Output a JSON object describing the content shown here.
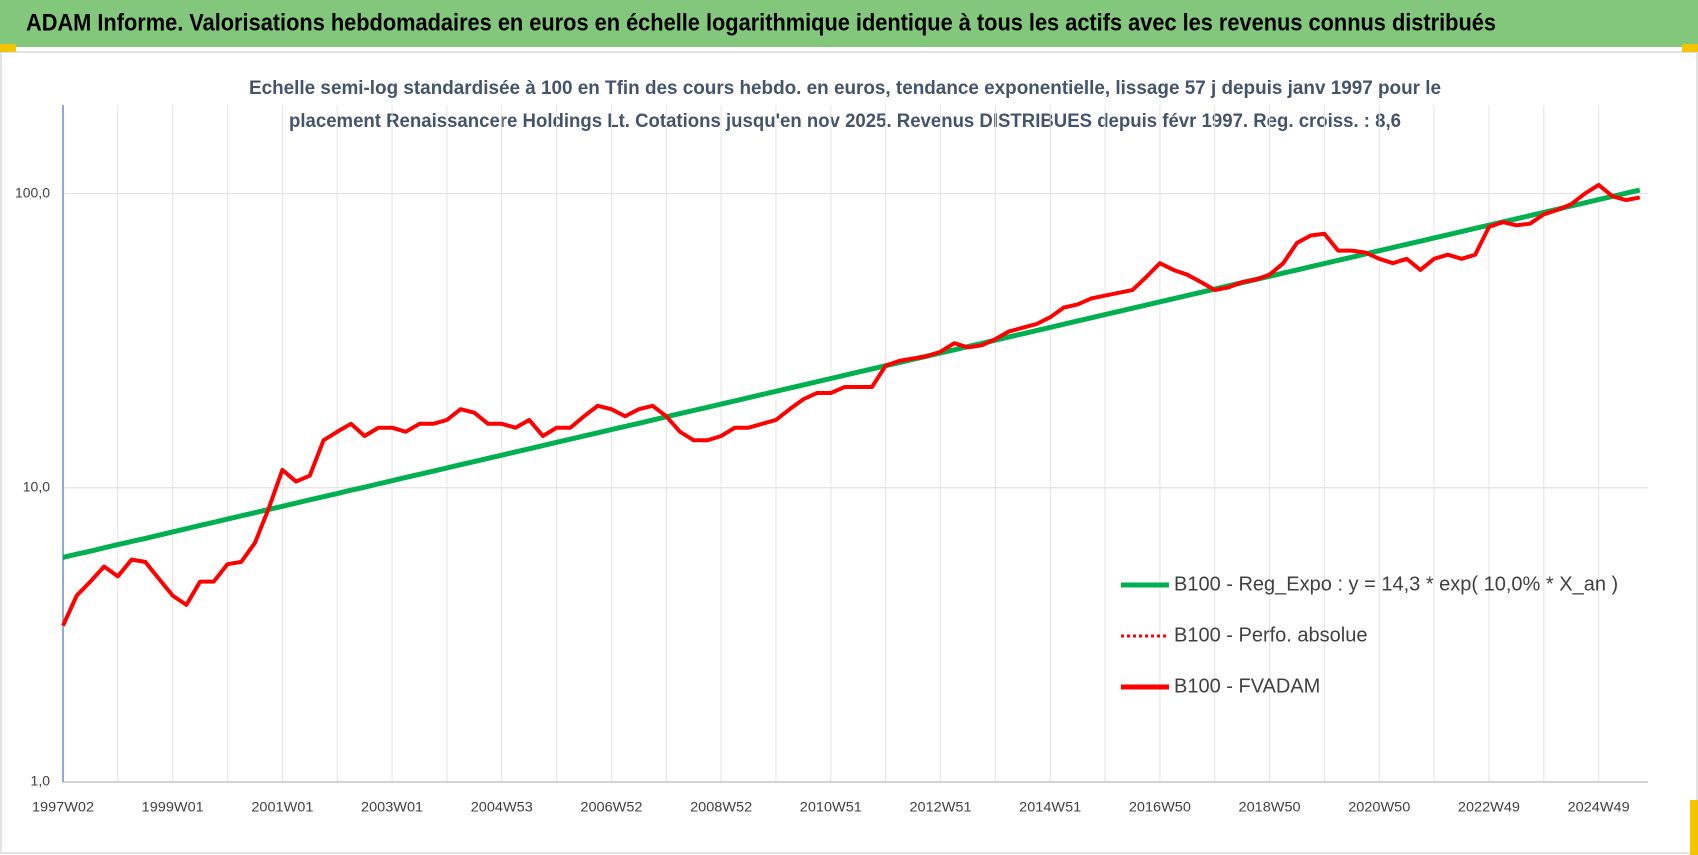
{
  "header": {
    "title": "ADAM Informe. Valorisations hebdomadaires en euros en échelle logarithmique identique à tous les actifs avec les revenus connus distribués"
  },
  "chart_data": {
    "type": "line",
    "title": [
      "Echelle semi-log standardisée à 100 en Tfin des cours hebdo. en euros, tendance exponentielle, lissage 57 j depuis janv 1997 pour le",
      "placement Renaissancere Holdings Lt. Cotations jusqu'en nov 2025. Revenus DISTRIBUES depuis févr 1997. Reg. croiss. : 8,6"
    ],
    "log_scale": true,
    "ylim": [
      1,
      200
    ],
    "yticks": [
      {
        "value": 1,
        "label": "1,0"
      },
      {
        "value": 10,
        "label": "10,0"
      },
      {
        "value": 100,
        "label": "100,0"
      }
    ],
    "grid": true,
    "legend": "lower right",
    "categories": [
      "1997W02",
      null,
      null,
      null,
      null,
      null,
      null,
      null,
      "1999W01",
      null,
      null,
      null,
      null,
      null,
      null,
      null,
      "2001W01",
      null,
      null,
      null,
      null,
      null,
      null,
      null,
      "2003W01",
      null,
      null,
      null,
      null,
      null,
      null,
      null,
      "2004W53",
      null,
      null,
      null,
      null,
      null,
      null,
      null,
      "2006W52",
      null,
      null,
      null,
      null,
      null,
      null,
      null,
      "2008W52",
      null,
      null,
      null,
      null,
      null,
      null,
      null,
      "2010W51",
      null,
      null,
      null,
      null,
      null,
      null,
      null,
      "2012W51",
      null,
      null,
      null,
      null,
      null,
      null,
      null,
      "2014W51",
      null,
      null,
      null,
      null,
      null,
      null,
      null,
      "2016W50",
      null,
      null,
      null,
      null,
      null,
      null,
      null,
      "2018W50",
      null,
      null,
      null,
      null,
      null,
      null,
      null,
      "2020W50",
      null,
      null,
      null,
      null,
      null,
      null,
      null,
      "2022W49",
      null,
      null,
      null,
      null,
      null,
      null,
      null,
      "2024W49",
      null,
      null,
      null
    ],
    "series": [
      {
        "name": "B100 - Reg_Expo : y = 14,3 * exp( 10,0% *  X_an )",
        "color": "#00b050",
        "style": "solid",
        "values": [
          5.8,
          5.95,
          6.09,
          6.25,
          6.41,
          6.57,
          6.73,
          6.9,
          7.08,
          7.26,
          7.45,
          7.63,
          7.83,
          8.03,
          8.23,
          8.44,
          8.65,
          8.87,
          9.1,
          9.33,
          9.56,
          9.81,
          10.05,
          10.31,
          10.57,
          10.84,
          11.11,
          11.39,
          11.68,
          11.98,
          12.28,
          12.59,
          12.91,
          13.24,
          13.57,
          13.91,
          14.27,
          14.63,
          15,
          15.38,
          15.77,
          16.16,
          16.57,
          16.99,
          17.42,
          17.87,
          18.32,
          18.78,
          19.26,
          19.74,
          20.24,
          20.76,
          21.28,
          21.82,
          22.37,
          22.94,
          23.52,
          24.12,
          24.73,
          25.35,
          25.99,
          26.65,
          27.33,
          28.02,
          28.73,
          29.45,
          30.2,
          30.96,
          31.75,
          32.55,
          33.38,
          34.22,
          35.09,
          35.98,
          36.89,
          37.82,
          38.78,
          39.76,
          40.77,
          41.8,
          42.86,
          43.94,
          45.05,
          46.19,
          47.36,
          48.56,
          49.79,
          51.05,
          52.35,
          53.67,
          55.03,
          56.42,
          57.85,
          59.31,
          60.81,
          62.35,
          63.93,
          65.55,
          67.21,
          68.91,
          70.66,
          72.44,
          74.28,
          76.16,
          78.09,
          80.06,
          82.09,
          84.17,
          86.3,
          88.49,
          90.73,
          93.02,
          95.38,
          97.79,
          100.27,
          102.81
        ]
      },
      {
        "name": "B100 - Perfo. absolue",
        "color": "#ff0000",
        "style": "dotted",
        "values": [
          3.4,
          4.3,
          4.8,
          5.4,
          5,
          5.7,
          5.6,
          4.9,
          4.3,
          4,
          4.8,
          4.8,
          5.5,
          5.6,
          6.5,
          8.5,
          11.5,
          10.5,
          11,
          14.5,
          15.5,
          16.5,
          15,
          16,
          16,
          15.5,
          16.5,
          16.5,
          17,
          18.5,
          18,
          16.5,
          16.5,
          16,
          17,
          15,
          16,
          16,
          17.5,
          19,
          18.5,
          17.5,
          18.5,
          19,
          17.5,
          15.5,
          14.5,
          14.5,
          15,
          16,
          16,
          16.5,
          17,
          18.5,
          20,
          21,
          21,
          22,
          22,
          22,
          26,
          27,
          27.5,
          28,
          29,
          31,
          30,
          30.5,
          32,
          34,
          35,
          36,
          38,
          41,
          42,
          44,
          45,
          46,
          47,
          52,
          58,
          55,
          53,
          50,
          47,
          48,
          50,
          51,
          53,
          58,
          68,
          72,
          73,
          64,
          64,
          63,
          60,
          58,
          60,
          55,
          60,
          62,
          60,
          62,
          77,
          80,
          78,
          79,
          85,
          88,
          92,
          100,
          107,
          98,
          95,
          97
        ]
      },
      {
        "name": "B100 - FVADAM",
        "color": "#ff0000",
        "style": "solid",
        "values": [
          3.4,
          4.3,
          4.8,
          5.4,
          5,
          5.7,
          5.6,
          4.9,
          4.3,
          4,
          4.8,
          4.8,
          5.5,
          5.6,
          6.5,
          8.5,
          11.5,
          10.5,
          11,
          14.5,
          15.5,
          16.5,
          15,
          16,
          16,
          15.5,
          16.5,
          16.5,
          17,
          18.5,
          18,
          16.5,
          16.5,
          16,
          17,
          15,
          16,
          16,
          17.5,
          19,
          18.5,
          17.5,
          18.5,
          19,
          17.5,
          15.5,
          14.5,
          14.5,
          15,
          16,
          16,
          16.5,
          17,
          18.5,
          20,
          21,
          21,
          22,
          22,
          22,
          26,
          27,
          27.5,
          28,
          29,
          31,
          30,
          30.5,
          32,
          34,
          35,
          36,
          38,
          41,
          42,
          44,
          45,
          46,
          47,
          52,
          58,
          55,
          53,
          50,
          47,
          48,
          50,
          51,
          53,
          58,
          68,
          72,
          73,
          64,
          64,
          63,
          60,
          58,
          60,
          55,
          60,
          62,
          60,
          62,
          77,
          80,
          78,
          79,
          85,
          88,
          92,
          100,
          107,
          98,
          95,
          97
        ]
      }
    ]
  }
}
